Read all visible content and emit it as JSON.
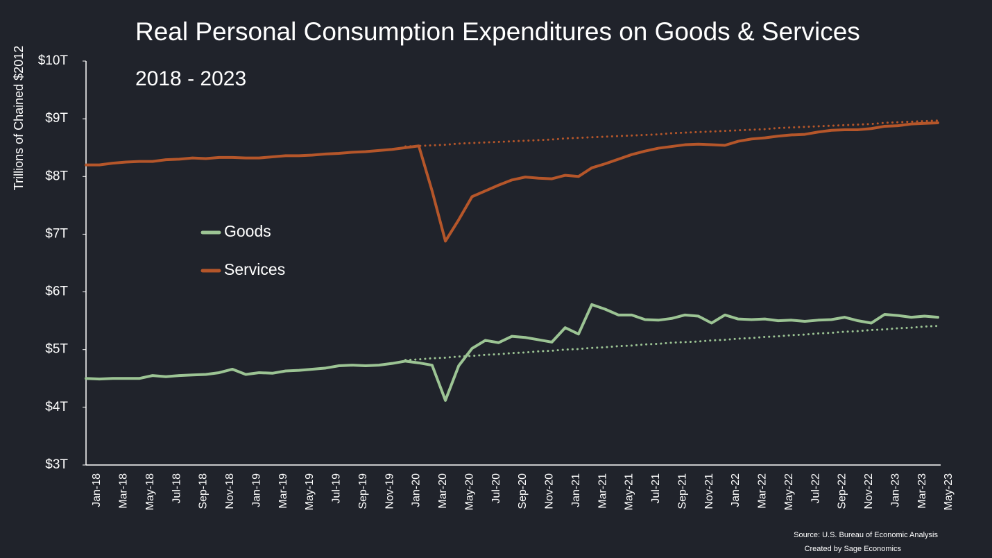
{
  "chart_data": {
    "type": "line",
    "title": "Real Personal Consumption Expenditures on Goods & Services",
    "subtitle": "2018 - 2023",
    "y_label": "Trillions of Chained $2012",
    "source": "Source: U.S. Bureau of Economic Analysis",
    "credit": "Created by Sage Economics",
    "categories": [
      "Jan-18",
      null,
      "Mar-18",
      null,
      "May-18",
      null,
      "Jul-18",
      null,
      "Sep-18",
      null,
      "Nov-18",
      null,
      "Jan-19",
      null,
      "Mar-19",
      null,
      "May-19",
      null,
      "Jul-19",
      null,
      "Sep-19",
      null,
      "Nov-19",
      null,
      "Jan-20",
      null,
      "Mar-20",
      null,
      "May-20",
      null,
      "Jul-20",
      null,
      "Sep-20",
      null,
      "Nov-20",
      null,
      "Jan-21",
      null,
      "Mar-21",
      null,
      "May-21",
      null,
      "Jul-21",
      null,
      "Sep-21",
      null,
      "Nov-21",
      null,
      "Jan-22",
      null,
      "Mar-22",
      null,
      "May-22",
      null,
      "Jul-22",
      null,
      "Sep-22",
      null,
      "Nov-22",
      null,
      "Jan-23",
      null,
      "Mar-23",
      null,
      "May-23"
    ],
    "ylim": [
      3,
      10
    ],
    "yticks": [
      {
        "value": 3,
        "label": "$3T"
      },
      {
        "value": 4,
        "label": "$4T"
      },
      {
        "value": 5,
        "label": "$5T"
      },
      {
        "value": 6,
        "label": "$6T"
      },
      {
        "value": 7,
        "label": "$7T"
      },
      {
        "value": 8,
        "label": "$8T"
      },
      {
        "value": 9,
        "label": "$9T"
      },
      {
        "value": 10,
        "label": "$10T"
      }
    ],
    "grid": false,
    "series": [
      {
        "name": "Goods",
        "color": "#9cc494",
        "values": [
          4.5,
          4.49,
          4.5,
          4.5,
          4.5,
          4.55,
          4.53,
          4.55,
          4.56,
          4.57,
          4.6,
          4.66,
          4.57,
          4.6,
          4.59,
          4.63,
          4.64,
          4.66,
          4.68,
          4.72,
          4.73,
          4.72,
          4.73,
          4.76,
          4.8,
          4.77,
          4.73,
          4.12,
          4.72,
          5.02,
          5.16,
          5.12,
          5.23,
          5.21,
          5.17,
          5.13,
          5.38,
          5.27,
          5.78,
          5.7,
          5.6,
          5.6,
          5.52,
          5.51,
          5.54,
          5.6,
          5.58,
          5.46,
          5.6,
          5.53,
          5.52,
          5.53,
          5.5,
          5.51,
          5.49,
          5.51,
          5.52,
          5.56,
          5.5,
          5.46,
          5.61,
          5.59,
          5.56,
          5.58,
          5.56
        ]
      },
      {
        "name": "Services",
        "color": "#b5562a",
        "values": [
          8.2,
          8.2,
          8.23,
          8.25,
          8.26,
          8.26,
          8.29,
          8.3,
          8.32,
          8.31,
          8.33,
          8.33,
          8.32,
          8.32,
          8.34,
          8.36,
          8.36,
          8.37,
          8.39,
          8.4,
          8.42,
          8.43,
          8.45,
          8.47,
          8.5,
          8.53,
          7.75,
          6.88,
          7.25,
          7.65,
          7.75,
          7.85,
          7.94,
          7.99,
          7.97,
          7.96,
          8.02,
          8.0,
          8.15,
          8.22,
          8.3,
          8.38,
          8.44,
          8.49,
          8.52,
          8.55,
          8.56,
          8.55,
          8.54,
          8.61,
          8.65,
          8.67,
          8.7,
          8.72,
          8.73,
          8.77,
          8.8,
          8.81,
          8.81,
          8.83,
          8.87,
          8.88,
          8.91,
          8.92,
          8.93
        ]
      },
      {
        "color": "#9cc494",
        "style": "dotted",
        "values": [
          null,
          null,
          null,
          null,
          null,
          null,
          null,
          null,
          null,
          null,
          null,
          null,
          null,
          null,
          null,
          null,
          null,
          null,
          null,
          null,
          null,
          null,
          null,
          null,
          4.82,
          4.83,
          4.85,
          4.86,
          4.88,
          4.89,
          4.91,
          4.92,
          4.94,
          4.95,
          4.97,
          4.98,
          5.0,
          5.01,
          5.03,
          5.04,
          5.06,
          5.07,
          5.09,
          5.1,
          5.12,
          5.13,
          5.14,
          5.16,
          5.17,
          5.19,
          5.2,
          5.22,
          5.23,
          5.25,
          5.26,
          5.28,
          5.29,
          5.31,
          5.32,
          5.34,
          5.35,
          5.37,
          5.38,
          5.4,
          5.41
        ]
      },
      {
        "color": "#b5562a",
        "style": "dotted",
        "values": [
          null,
          null,
          null,
          null,
          null,
          null,
          null,
          null,
          null,
          null,
          null,
          null,
          null,
          null,
          null,
          null,
          null,
          null,
          null,
          null,
          null,
          null,
          null,
          null,
          8.52,
          8.53,
          8.54,
          8.55,
          8.57,
          8.58,
          8.59,
          8.6,
          8.61,
          8.62,
          8.63,
          8.64,
          8.66,
          8.67,
          8.68,
          8.69,
          8.7,
          8.71,
          8.72,
          8.73,
          8.75,
          8.76,
          8.77,
          8.78,
          8.79,
          8.8,
          8.81,
          8.82,
          8.84,
          8.85,
          8.86,
          8.87,
          8.88,
          8.89,
          8.9,
          8.91,
          8.93,
          8.94,
          8.95,
          8.96,
          8.97
        ]
      }
    ]
  }
}
